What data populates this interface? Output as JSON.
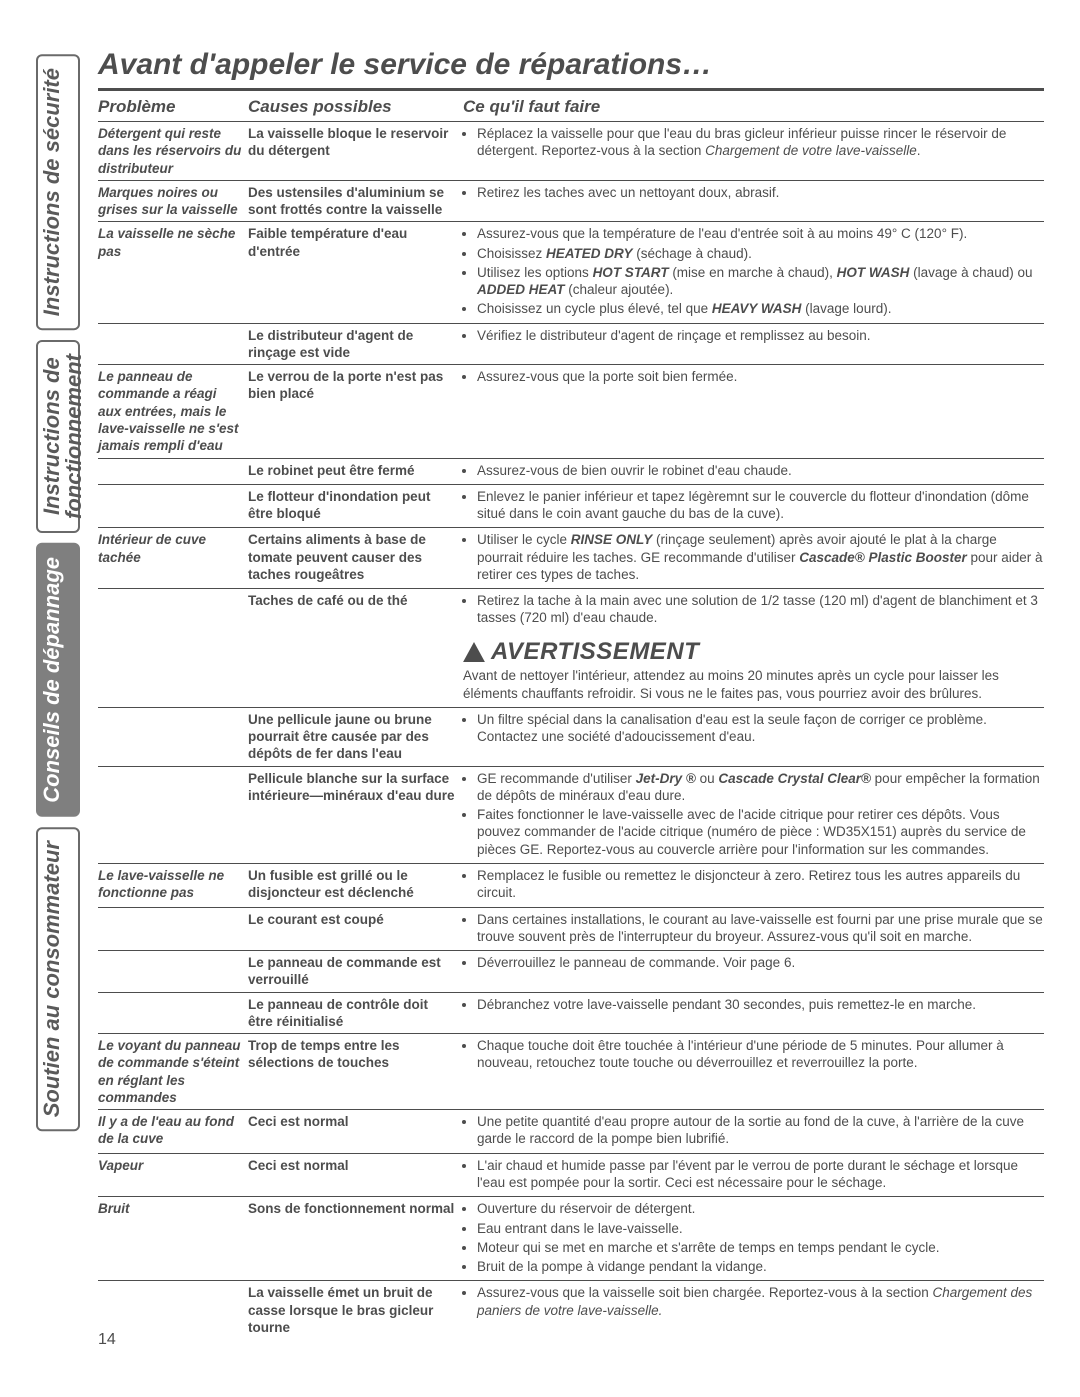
{
  "title": "Avant d'appeler le service de réparations…",
  "pageNumber": "14",
  "tabs": [
    {
      "label": "Instructions de sécurité",
      "active": false
    },
    {
      "label": "Instructions de\nfonctionnement",
      "active": false
    },
    {
      "label": "Conseils de dépannage",
      "active": true
    },
    {
      "label": "Soutien au consommateur",
      "active": false
    }
  ],
  "headers": {
    "c1": "Problème",
    "c2": "Causes possibles",
    "c3": "Ce qu'il faut faire"
  },
  "warning": {
    "title": "AVERTISSEMENT",
    "text": "Avant de nettoyer l'intérieur, attendez au moins 20 minutes après un cycle pour laisser les éléments chauffants refroidir. Si vous ne le faites pas, vous pourriez avoir des brûlures."
  },
  "rows": [
    {
      "problem": "Détergent qui reste dans les réservoirs du distributeur",
      "cause": "La vaisselle bloque le reservoir du détergent",
      "actions": [
        "Réplacez la vaisselle pour que l'eau du bras gicleur inférieur puisse rincer le réservoir de détergent. Reportez-vous à la section <i>Chargement de votre lave-vaisselle</i>."
      ]
    },
    {
      "problem": "Marques noires ou grises sur la vaisselle",
      "cause": "Des ustensiles d'aluminium se sont frottés contre la vaisselle",
      "actions": [
        "Retirez les taches avec un nettoyant doux, abrasif."
      ]
    },
    {
      "problem": "La vaisselle ne sèche pas",
      "cause": "Faible température d'eau d'entrée",
      "actions": [
        "Assurez-vous que la température de l'eau d'entrée soit à au moins 49° C (120° F).",
        "Choisissez <b><i>HEATED DRY</i></b> (séchage à chaud).",
        "Utilisez les options <b><i>HOT START</i></b> (mise en marche à chaud), <b><i>HOT WASH</i></b> (lavage à chaud) ou <b><i>ADDED HEAT</i></b> (chaleur ajoutée).",
        "Choisissez un cycle plus élevé, tel que <b><i>HEAVY WASH</i></b> (lavage lourd)."
      ]
    },
    {
      "problem": "",
      "cause": "Le distributeur d'agent de rinçage est vide",
      "actions": [
        "Vérifiez le distributeur d'agent de rinçage et remplissez au besoin."
      ]
    },
    {
      "problem": "Le panneau de commande a réagi aux entrées, mais le lave-vaisselle ne s'est jamais rempli d'eau",
      "cause": "Le verrou de la porte n'est pas bien placé",
      "actions": [
        "Assurez-vous que la porte soit bien fermée."
      ]
    },
    {
      "problem": "",
      "cause": "Le robinet peut être fermé",
      "actions": [
        "Assurez-vous de bien ouvrir le robinet d'eau chaude."
      ]
    },
    {
      "problem": "",
      "cause": "Le flotteur d'inondation peut être bloqué",
      "actions": [
        "Enlevez le panier inférieur et tapez légèremnt sur le couvercle du flotteur d'inondation (dôme situé dans le coin avant gauche du bas de la cuve)."
      ]
    },
    {
      "problem": "Intérieur de cuve tachée",
      "cause": "Certains aliments à base de tomate peuvent causer des taches rougeâtres",
      "actions": [
        "Utiliser le cycle <b><i>RINSE ONLY</i></b> (rinçage seulement) après avoir ajouté le plat à la charge pourrait réduire les taches. GE recommande d'utiliser <b><i>Cascade® Plastic Booster</i></b> pour aider à retirer ces types de taches."
      ]
    },
    {
      "problem": "",
      "cause": "Taches de café ou de thé",
      "actions": [
        "Retirez la tache à la main avec une solution de 1/2 tasse (120 ml) d'agent de blanchiment et 3 tasses (720 ml) d'eau chaude."
      ],
      "warningAfter": true
    },
    {
      "problem": "",
      "cause": "Une pellicule jaune ou brune pourrait être causée par des dépôts de fer dans l'eau",
      "actions": [
        "Un filtre spécial dans la canalisation d'eau est la seule façon de corriger ce problème. Contactez une société d'adoucissement d'eau."
      ]
    },
    {
      "problem": "",
      "cause": "Pellicule blanche sur la surface intérieure—minéraux d'eau dure",
      "actions": [
        "GE recommande d'utiliser <b><i>Jet-Dry ®</i></b> ou <b><i>Cascade Crystal Clear®</i></b> pour empêcher la formation de dépôts de minéraux d'eau dure.",
        "Faites fonctionner le lave-vaisselle avec de l'acide citrique pour retirer ces dépôts. Vous pouvez commander de l'acide citrique (numéro de pièce : WD35X151) auprès du service de pièces GE. Reportez-vous au couvercle arrière pour l'information sur les commandes."
      ]
    },
    {
      "problem": "Le lave-vaisselle ne fonctionne pas",
      "cause": "Un fusible est grillé ou le disjoncteur est déclenché",
      "actions": [
        "Remplacez le fusible ou remettez le disjoncteur à zero. Retirez tous les autres appareils du circuit."
      ]
    },
    {
      "problem": "",
      "cause": "Le courant est coupé",
      "actions": [
        "Dans certaines installations, le courant au lave-vaisselle est fourni par une prise murale que se trouve souvent près de l'interrupteur du broyeur. Assurez-vous qu'il soit en marche."
      ]
    },
    {
      "problem": "",
      "cause": "Le panneau de commande est verrouillé",
      "actions": [
        "Déverrouillez le panneau de commande. Voir page 6."
      ]
    },
    {
      "problem": "",
      "cause": "Le panneau de contrôle doit être réinitialisé",
      "actions": [
        "Débranchez votre lave-vaisselle pendant 30 secondes, puis remettez-le en marche."
      ]
    },
    {
      "problem": "Le voyant du panneau de commande s'éteint en réglant les commandes",
      "cause": "Trop de temps entre les sélections de touches",
      "actions": [
        "Chaque touche doit être touchée à l'intérieur d'une période de 5 minutes. Pour allumer à nouveau, retouchez toute touche ou déverrouillez et reverrouillez la porte."
      ]
    },
    {
      "problem": "Il y a de l'eau au fond de la cuve",
      "cause": "Ceci est normal",
      "actions": [
        "Une petite quantité d'eau propre autour de la sortie au fond de la cuve, à l'arrière de la cuve garde le raccord de la pompe bien lubrifié."
      ]
    },
    {
      "problem": "Vapeur",
      "cause": "Ceci est normal",
      "actions": [
        "L'air chaud et humide passe par l'évent par le verrou de porte durant le séchage et lorsque l'eau est pompée pour la sortir. Ceci est nécessaire pour le séchage."
      ]
    },
    {
      "problem": "Bruit",
      "cause": "Sons de fonctionnement normal",
      "actions": [
        "Ouverture du réservoir de détergent.",
        "Eau entrant dans le lave-vaisselle.",
        "Moteur qui se met en marche et s'arrête de temps en temps pendant le cycle.",
        "Bruit de la pompe à vidange pendant la vidange."
      ]
    },
    {
      "problem": "",
      "cause": "La vaisselle émet un bruit de casse lorsque le bras gicleur tourne",
      "actions": [
        "Assurez-vous que la vaisselle soit bien chargée. Reportez-vous à la section <i>Chargement des paniers de votre lave-vaisselle.</i>"
      ]
    }
  ]
}
